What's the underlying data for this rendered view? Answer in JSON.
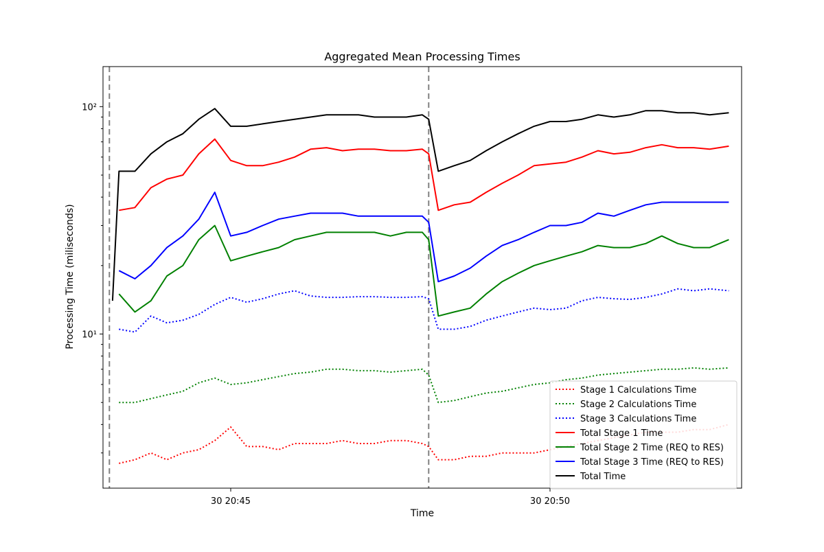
{
  "chart_data": {
    "type": "line",
    "title": "Aggregated Mean Processing Times",
    "xlabel": "Time",
    "ylabel": "Processing Time (miliseconds)",
    "yscale": "log",
    "ylim": [
      2.1,
      150
    ],
    "x_tick_labels": [
      "30 20:45",
      "30 20:50"
    ],
    "y_tick_labels": [
      "10¹",
      "10²"
    ],
    "x_range_minutes": [
      -2.0,
      8.0
    ],
    "x_ticks_minutes": [
      0,
      5
    ],
    "y_ticks": [
      10,
      100
    ],
    "vertical_reference_lines_minutes": [
      -1.9,
      3.1
    ],
    "legend_position": "lower-right",
    "series": [
      {
        "name": "Stage 1 Calculations Time",
        "color": "#ff0000",
        "style": "dotted",
        "x": [
          -1.75,
          -1.5,
          -1.25,
          -1.0,
          -0.75,
          -0.5,
          -0.25,
          0.0,
          0.25,
          0.5,
          0.75,
          1.0,
          1.25,
          1.5,
          1.75,
          2.0,
          2.25,
          2.5,
          2.75,
          3.0,
          3.1,
          3.25,
          3.5,
          3.75,
          4.0,
          4.25,
          4.5,
          4.75,
          5.0,
          5.25,
          5.5,
          5.75,
          6.0,
          6.25,
          6.5,
          6.75,
          7.0,
          7.25,
          7.5,
          7.8
        ],
        "y": [
          2.7,
          2.8,
          3.0,
          2.8,
          3.0,
          3.1,
          3.4,
          3.9,
          3.2,
          3.2,
          3.1,
          3.3,
          3.3,
          3.3,
          3.4,
          3.3,
          3.3,
          3.4,
          3.4,
          3.3,
          3.2,
          2.8,
          2.8,
          2.9,
          2.9,
          3.0,
          3.0,
          3.0,
          3.1,
          3.2,
          3.3,
          3.4,
          3.5,
          3.6,
          3.7,
          3.7,
          3.7,
          3.8,
          3.8,
          4.0
        ]
      },
      {
        "name": "Stage 2 Calculations Time",
        "color": "#008000",
        "style": "dotted",
        "x": [
          -1.75,
          -1.5,
          -1.25,
          -1.0,
          -0.75,
          -0.5,
          -0.25,
          0.0,
          0.25,
          0.5,
          0.75,
          1.0,
          1.25,
          1.5,
          1.75,
          2.0,
          2.25,
          2.5,
          2.75,
          3.0,
          3.1,
          3.25,
          3.5,
          3.75,
          4.0,
          4.25,
          4.5,
          4.75,
          5.0,
          5.25,
          5.5,
          5.75,
          6.0,
          6.25,
          6.5,
          6.75,
          7.0,
          7.25,
          7.5,
          7.8
        ],
        "y": [
          5.0,
          5.0,
          5.2,
          5.4,
          5.6,
          6.1,
          6.4,
          6.0,
          6.1,
          6.3,
          6.5,
          6.7,
          6.8,
          7.0,
          7.0,
          6.9,
          6.9,
          6.8,
          6.9,
          7.0,
          6.6,
          5.0,
          5.1,
          5.3,
          5.5,
          5.6,
          5.8,
          6.0,
          6.1,
          6.3,
          6.4,
          6.6,
          6.7,
          6.8,
          6.9,
          7.0,
          7.0,
          7.1,
          7.0,
          7.1
        ]
      },
      {
        "name": "Stage 3 Calculations Time",
        "color": "#0000ff",
        "style": "dotted",
        "x": [
          -1.75,
          -1.5,
          -1.25,
          -1.0,
          -0.75,
          -0.5,
          -0.25,
          0.0,
          0.25,
          0.5,
          0.75,
          1.0,
          1.25,
          1.5,
          1.75,
          2.0,
          2.25,
          2.5,
          2.75,
          3.0,
          3.1,
          3.25,
          3.5,
          3.75,
          4.0,
          4.25,
          4.5,
          4.75,
          5.0,
          5.25,
          5.5,
          5.75,
          6.0,
          6.25,
          6.5,
          6.75,
          7.0,
          7.25,
          7.5,
          7.8
        ],
        "y": [
          10.5,
          10.2,
          12.0,
          11.2,
          11.5,
          12.2,
          13.5,
          14.5,
          13.8,
          14.3,
          15.0,
          15.5,
          14.7,
          14.5,
          14.5,
          14.6,
          14.6,
          14.5,
          14.5,
          14.6,
          14.3,
          10.5,
          10.5,
          10.8,
          11.5,
          12.0,
          12.5,
          13.0,
          12.8,
          13.0,
          14.0,
          14.5,
          14.3,
          14.2,
          14.5,
          15.0,
          15.8,
          15.5,
          15.8,
          15.5
        ]
      },
      {
        "name": "Total Stage 1 Time",
        "color": "#ff0000",
        "style": "solid",
        "x": [
          -1.75,
          -1.5,
          -1.25,
          -1.0,
          -0.75,
          -0.5,
          -0.25,
          0.0,
          0.25,
          0.5,
          0.75,
          1.0,
          1.25,
          1.5,
          1.75,
          2.0,
          2.25,
          2.5,
          2.75,
          3.0,
          3.1,
          3.25,
          3.5,
          3.75,
          4.0,
          4.25,
          4.5,
          4.75,
          5.0,
          5.25,
          5.5,
          5.75,
          6.0,
          6.25,
          6.5,
          6.75,
          7.0,
          7.25,
          7.5,
          7.8
        ],
        "y": [
          35,
          36,
          44,
          48,
          50,
          62,
          72,
          58,
          55,
          55,
          57,
          60,
          65,
          66,
          64,
          65,
          65,
          64,
          64,
          65,
          62,
          35,
          37,
          38,
          42,
          46,
          50,
          55,
          56,
          57,
          60,
          64,
          62,
          63,
          66,
          68,
          66,
          66,
          65,
          67
        ]
      },
      {
        "name": "Total Stage 2 Time (REQ to RES)",
        "color": "#008000",
        "style": "solid",
        "x": [
          -1.75,
          -1.5,
          -1.25,
          -1.0,
          -0.75,
          -0.5,
          -0.25,
          0.0,
          0.25,
          0.5,
          0.75,
          1.0,
          1.25,
          1.5,
          1.75,
          2.0,
          2.25,
          2.5,
          2.75,
          3.0,
          3.1,
          3.25,
          3.5,
          3.75,
          4.0,
          4.25,
          4.5,
          4.75,
          5.0,
          5.25,
          5.5,
          5.75,
          6.0,
          6.25,
          6.5,
          6.75,
          7.0,
          7.25,
          7.5,
          7.8
        ],
        "y": [
          15,
          12.5,
          14,
          18,
          20,
          26,
          30,
          21,
          22,
          23,
          24,
          26,
          27,
          28,
          28,
          28,
          28,
          27,
          28,
          28,
          26,
          12,
          12.5,
          13,
          15,
          17,
          18.5,
          20,
          21,
          22,
          23,
          24.5,
          24,
          24,
          25,
          27,
          25,
          24,
          24,
          26
        ]
      },
      {
        "name": "Total Stage 3 Time (REQ to RES)",
        "color": "#0000ff",
        "style": "solid",
        "x": [
          -1.75,
          -1.5,
          -1.25,
          -1.0,
          -0.75,
          -0.5,
          -0.25,
          0.0,
          0.25,
          0.5,
          0.75,
          1.0,
          1.25,
          1.5,
          1.75,
          2.0,
          2.25,
          2.5,
          2.75,
          3.0,
          3.1,
          3.25,
          3.5,
          3.75,
          4.0,
          4.25,
          4.5,
          4.75,
          5.0,
          5.25,
          5.5,
          5.75,
          6.0,
          6.25,
          6.5,
          6.75,
          7.0,
          7.25,
          7.5,
          7.8
        ],
        "y": [
          19,
          17.5,
          20,
          24,
          27,
          32,
          42,
          27,
          28,
          30,
          32,
          33,
          34,
          34,
          34,
          33,
          33,
          33,
          33,
          33,
          31,
          17,
          18,
          19.5,
          22,
          24.5,
          26,
          28,
          30,
          30,
          31,
          34,
          33,
          35,
          37,
          38,
          38,
          38,
          38,
          38
        ]
      },
      {
        "name": "Total Time",
        "color": "#000000",
        "style": "solid",
        "x": [
          -1.85,
          -1.75,
          -1.5,
          -1.25,
          -1.0,
          -0.75,
          -0.5,
          -0.25,
          0.0,
          0.25,
          0.5,
          0.75,
          1.0,
          1.25,
          1.5,
          1.75,
          2.0,
          2.25,
          2.5,
          2.75,
          3.0,
          3.1,
          3.25,
          3.5,
          3.75,
          4.0,
          4.25,
          4.5,
          4.75,
          5.0,
          5.25,
          5.5,
          5.75,
          6.0,
          6.25,
          6.5,
          6.75,
          7.0,
          7.25,
          7.5,
          7.8
        ],
        "y": [
          14,
          52,
          52,
          62,
          70,
          76,
          88,
          98,
          82,
          82,
          84,
          86,
          88,
          90,
          92,
          92,
          92,
          90,
          90,
          90,
          92,
          88,
          52,
          55,
          58,
          64,
          70,
          76,
          82,
          86,
          86,
          88,
          92,
          90,
          92,
          96,
          96,
          94,
          94,
          92,
          94
        ]
      }
    ]
  }
}
